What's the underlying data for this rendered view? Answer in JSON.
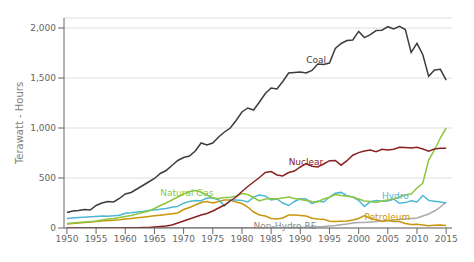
{
  "chart_data": {
    "type": "line",
    "y_label": "Terawatt - Hours",
    "x": [
      1950,
      1951,
      1952,
      1953,
      1954,
      1955,
      1956,
      1957,
      1958,
      1959,
      1960,
      1961,
      1962,
      1963,
      1964,
      1965,
      1966,
      1967,
      1968,
      1969,
      1970,
      1971,
      1972,
      1973,
      1974,
      1975,
      1976,
      1977,
      1978,
      1979,
      1980,
      1981,
      1982,
      1983,
      1984,
      1985,
      1986,
      1987,
      1988,
      1989,
      1990,
      1991,
      1992,
      1993,
      1994,
      1995,
      1996,
      1997,
      1998,
      1999,
      2000,
      2001,
      2002,
      2003,
      2004,
      2005,
      2006,
      2007,
      2008,
      2009,
      2010,
      2011,
      2012,
      2013,
      2014,
      2015
    ],
    "series": [
      {
        "name": "Non-Hydro RE",
        "color": "#aaaaaa",
        "values": [
          3,
          3,
          3,
          3,
          3,
          3,
          3,
          3,
          3,
          3,
          3,
          3,
          3,
          3,
          3,
          3,
          3,
          3,
          3,
          3,
          3,
          3,
          3,
          3,
          3,
          3,
          3,
          3,
          3,
          3,
          3,
          3,
          3,
          3,
          3,
          3,
          3,
          3,
          3,
          4,
          5,
          8,
          10,
          12,
          15,
          20,
          25,
          32,
          40,
          50,
          55,
          55,
          60,
          65,
          70,
          75,
          80,
          85,
          90,
          95,
          100,
          120,
          140,
          170,
          210,
          260
        ]
      },
      {
        "name": "Petroleum",
        "color": "#c8960c",
        "values": [
          40,
          45,
          50,
          55,
          60,
          65,
          70,
          75,
          78,
          82,
          90,
          95,
          102,
          108,
          115,
          122,
          128,
          135,
          142,
          150,
          185,
          205,
          230,
          255,
          265,
          250,
          265,
          280,
          280,
          260,
          245,
          210,
          160,
          130,
          120,
          95,
          90,
          100,
          130,
          130,
          126,
          120,
          98,
          90,
          87,
          68,
          65,
          68,
          70,
          80,
          95,
          125,
          94,
          82,
          65,
          75,
          64,
          65,
          46,
          36,
          37,
          30,
          23,
          27,
          30,
          25
        ]
      },
      {
        "name": "Hydro",
        "color": "#4db8d4",
        "values": [
          96,
          100,
          104,
          108,
          112,
          116,
          120,
          118,
          122,
          128,
          148,
          152,
          160,
          165,
          175,
          180,
          188,
          196,
          208,
          216,
          248,
          266,
          275,
          272,
          300,
          300,
          283,
          220,
          280,
          280,
          276,
          260,
          309,
          330,
          321,
          281,
          290,
          250,
          225,
          265,
          292,
          290,
          243,
          269,
          260,
          310,
          347,
          356,
          323,
          310,
          276,
          216,
          264,
          275,
          268,
          270,
          289,
          247,
          254,
          273,
          260,
          325,
          276,
          268,
          259,
          249
        ]
      },
      {
        "name": "Natural Gas",
        "color": "#8dc63f",
        "values": [
          45,
          50,
          55,
          60,
          62,
          70,
          80,
          90,
          95,
          105,
          115,
          125,
          140,
          155,
          170,
          195,
          225,
          250,
          280,
          310,
          340,
          365,
          375,
          360,
          330,
          300,
          295,
          305,
          305,
          320,
          345,
          335,
          305,
          270,
          290,
          295,
          290,
          300,
          310,
          295,
          285,
          275,
          265,
          260,
          290,
          307,
          335,
          325,
          318,
          310,
          290,
          270,
          265,
          255,
          270,
          280,
          290,
          310,
          330,
          340,
          400,
          450,
          680,
          780,
          900,
          1000
        ]
      },
      {
        "name": "Nuclear",
        "color": "#8b2222",
        "values": [
          0,
          0,
          0,
          0,
          0,
          0,
          0,
          0,
          0,
          0,
          2,
          2,
          3,
          4,
          5,
          10,
          15,
          20,
          30,
          50,
          70,
          90,
          110,
          130,
          145,
          170,
          200,
          230,
          270,
          310,
          365,
          415,
          460,
          505,
          555,
          565,
          530,
          520,
          555,
          570,
          610,
          643,
          618,
          610,
          640,
          673,
          675,
          628,
          673,
          728,
          754,
          769,
          780,
          763,
          788,
          781,
          787,
          807,
          806,
          799,
          807,
          790,
          769,
          789,
          797,
          797
        ]
      },
      {
        "name": "Coal",
        "color": "#3d3d3d",
        "values": [
          155,
          170,
          175,
          185,
          180,
          225,
          250,
          265,
          260,
          295,
          340,
          355,
          390,
          425,
          460,
          495,
          545,
          575,
          625,
          675,
          705,
          720,
          770,
          850,
          830,
          850,
          910,
          960,
          1000,
          1075,
          1160,
          1200,
          1180,
          1260,
          1345,
          1400,
          1390,
          1465,
          1550,
          1555,
          1560,
          1550,
          1575,
          1640,
          1635,
          1650,
          1795,
          1845,
          1875,
          1880,
          1966,
          1904,
          1933,
          1974,
          1978,
          2013,
          1990,
          2016,
          1985,
          1755,
          1847,
          1733,
          1517,
          1581,
          1587,
          1478
        ]
      }
    ],
    "annotations": [
      {
        "text": "Non-Hydro RE",
        "x": 1982,
        "y": 18,
        "color": "#888888"
      },
      {
        "text": "Petroleum",
        "x": 2001,
        "y": 115,
        "color": "#c8960c"
      },
      {
        "text": "Hydro",
        "x": 2004,
        "y": 320,
        "color": "#4db8d4"
      },
      {
        "text": "Natural Gas",
        "x": 1966,
        "y": 350,
        "color": "#8dc63f"
      },
      {
        "text": "Nuclear",
        "x": 1988,
        "y": 660,
        "color": "#8b2222"
      },
      {
        "text": "Coal",
        "x": 1991,
        "y": 1680,
        "color": "#3d3d3d"
      }
    ],
    "xlim": [
      1949.5,
      2016
    ],
    "ylim": [
      0,
      2100
    ],
    "xticks": [
      1950,
      1955,
      1960,
      1965,
      1970,
      1975,
      1980,
      1985,
      1990,
      1995,
      2000,
      2005,
      2010,
      2015
    ],
    "yticks": [
      0,
      500,
      {
        "value": 1000,
        "label": "1,000"
      },
      {
        "value": 1500,
        "label": "1,500"
      },
      {
        "value": 2000,
        "label": "2,000"
      }
    ],
    "grid": "y"
  }
}
